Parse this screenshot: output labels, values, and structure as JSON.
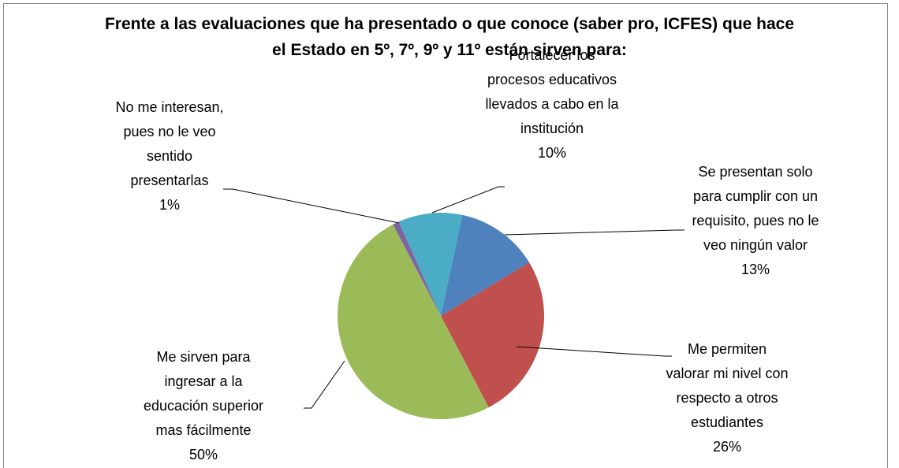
{
  "chart_data": {
    "type": "pie",
    "title": "Frente a las evaluaciones que ha presentado o que conoce (saber pro, ICFES) que hace el Estado en 5º, 7º, 9º y 11º están sirven para:",
    "categories": [
      "Se presentan solo para cumplir con un requisito, pues no le veo ningún valor",
      "Me permiten valorar  mi nivel con respecto a otros estudiantes",
      "Me sirven para ingresar a la educación superior mas fácilmente",
      "No me interesan, pues no le veo sentido presentarlas",
      "Fortalecer los procesos educativos llevados a cabo en la institución"
    ],
    "values": [
      13,
      26,
      50,
      1,
      10
    ],
    "value_labels": [
      "13%",
      "26%",
      "50%",
      "1%",
      "10%"
    ],
    "colors": [
      "#4f81bd",
      "#c0504d",
      "#9bbb59",
      "#8064a2",
      "#4bacc6"
    ]
  }
}
